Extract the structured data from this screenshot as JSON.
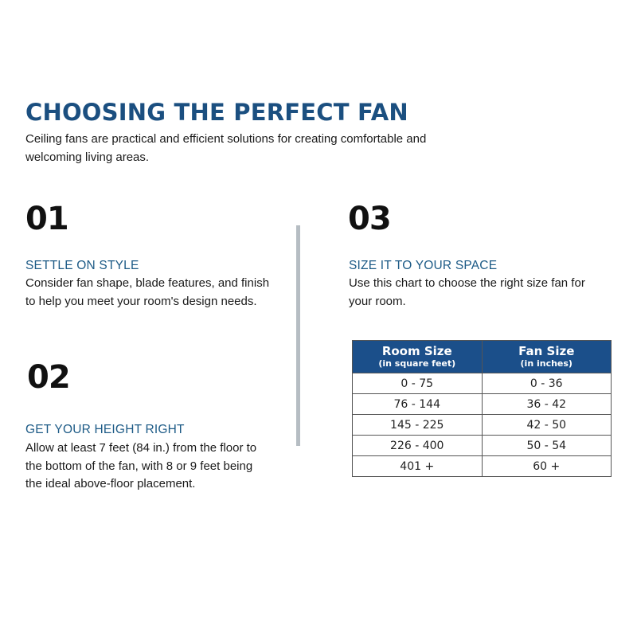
{
  "header": {
    "title": "CHOOSING THE PERFECT FAN",
    "intro": "Ceiling fans are practical and efficient solutions for creating comfortable and welcoming living areas."
  },
  "sections": [
    {
      "number": "01",
      "heading": "SETTLE ON STYLE",
      "body": "Consider fan shape, blade features, and finish to help you meet your room's design needs."
    },
    {
      "number": "02",
      "heading": "GET YOUR HEIGHT RIGHT",
      "body": "Allow at least 7 feet (84 in.) from the floor to the bottom of the fan, with 8 or 9 feet being the ideal above-floor placement."
    },
    {
      "number": "03",
      "heading": "SIZE IT TO YOUR SPACE",
      "body": "Use this chart to choose the right size fan for your room."
    }
  ],
  "table": {
    "headers": [
      {
        "label": "Room Size",
        "sub": "(in square feet)"
      },
      {
        "label": "Fan Size",
        "sub": "(in inches)"
      }
    ],
    "rows": [
      [
        "0 - 75",
        "0 - 36"
      ],
      [
        "76 - 144",
        "36 - 42"
      ],
      [
        "145 - 225",
        "42 - 50"
      ],
      [
        "226 - 400",
        "50 - 54"
      ],
      [
        "401 +",
        "60 +"
      ]
    ]
  },
  "colors": {
    "accent": "#1b4f80",
    "table_header": "#1b4f8a",
    "divider": "#b6bdc3"
  }
}
